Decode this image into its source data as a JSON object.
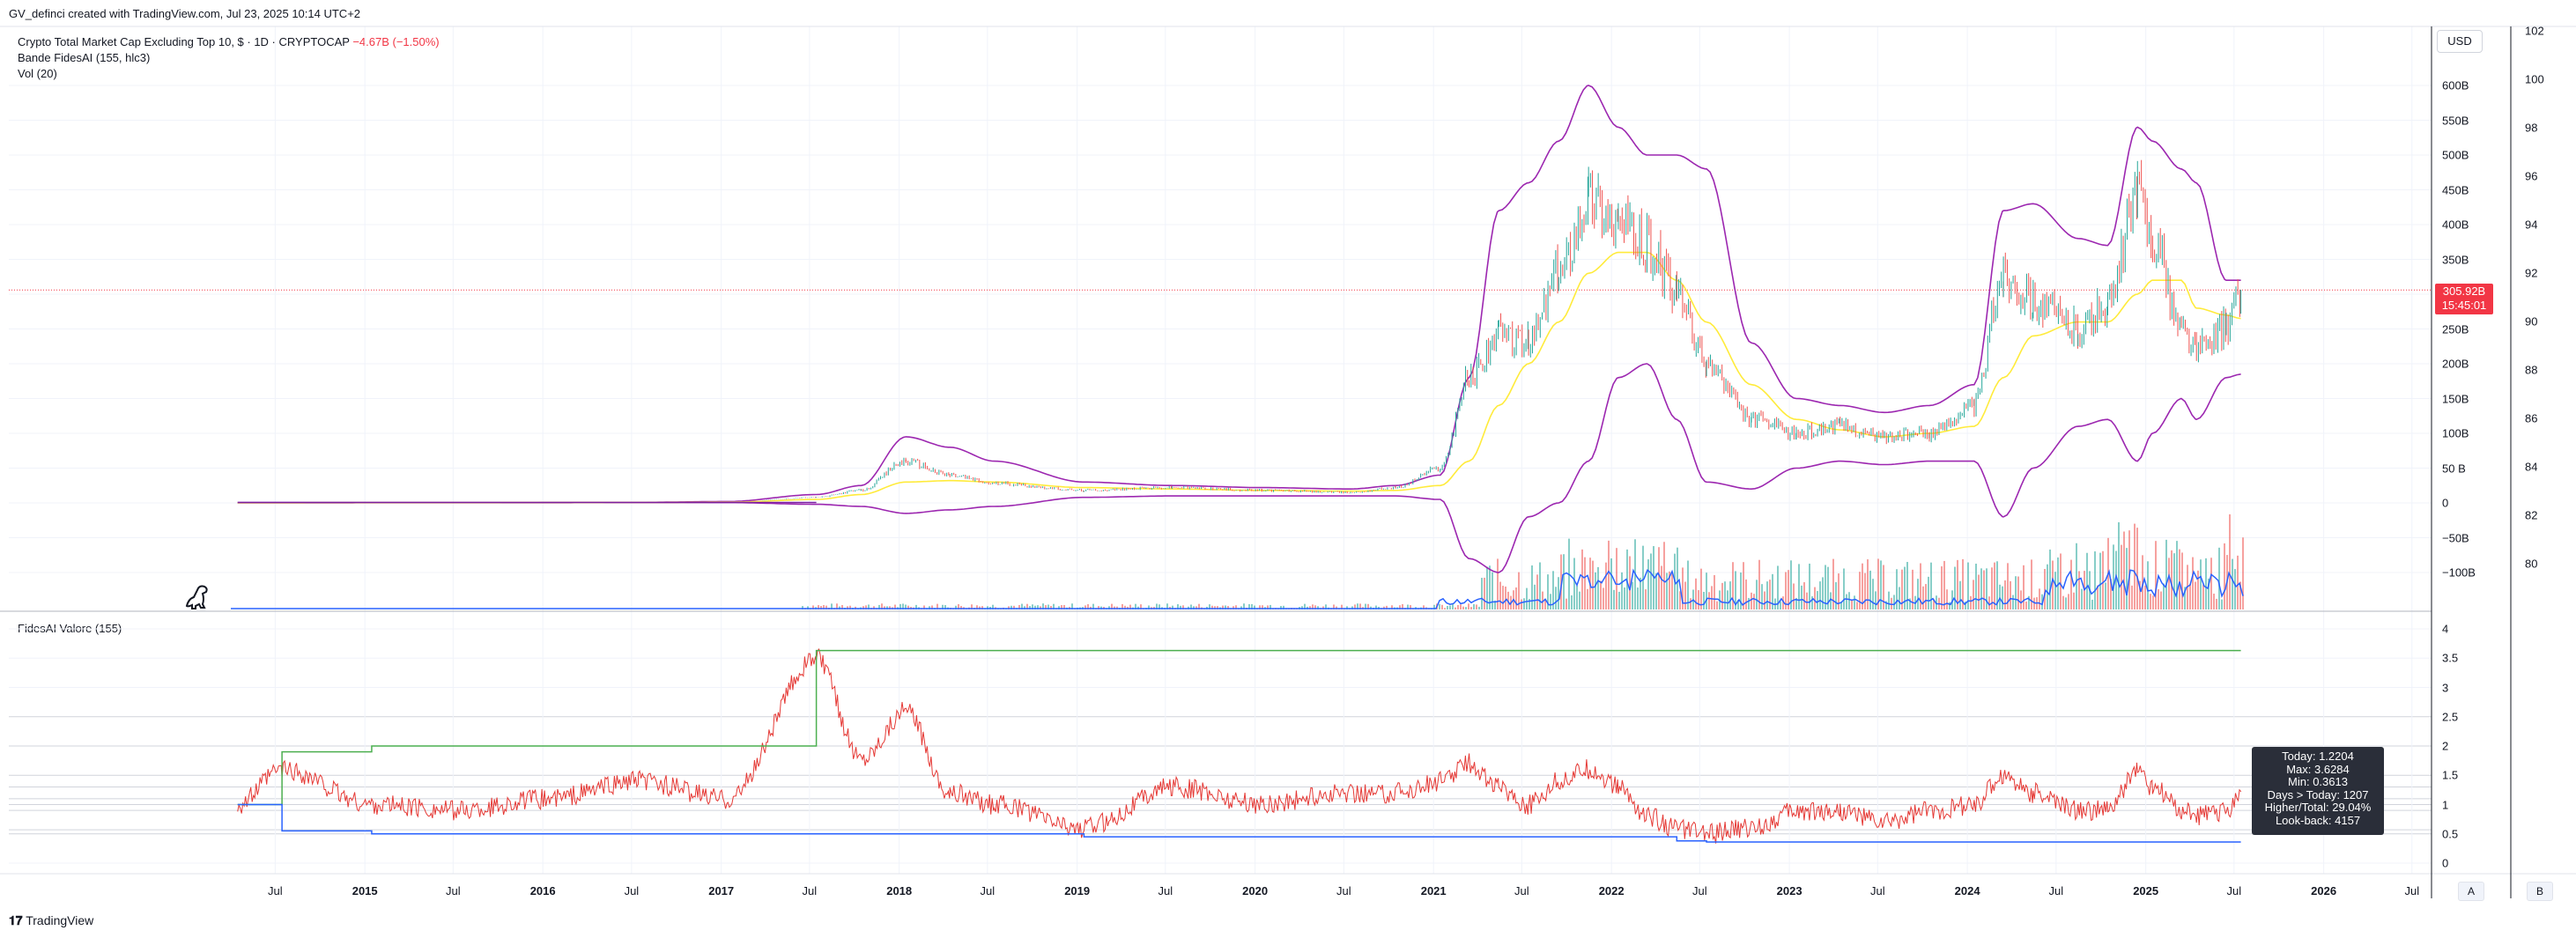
{
  "header": {
    "attribution": "GV_definci created with TradingView.com, Jul 23, 2025 10:14 UTC+2"
  },
  "legend": {
    "symbol_line": "Crypto Total Market Cap Excluding Top 10, $ · 1D · CRYPTOCAP",
    "change": "−4.67B (−1.50%)",
    "indicator1": "Bande FidesAI (155, hlc3)",
    "indicator2": "Vol (20)"
  },
  "lower_pane": {
    "title": "FidesAI Valore (155)"
  },
  "price_axis": {
    "currency_button": "USD",
    "left_labels": [
      "600B",
      "550B",
      "500B",
      "450B",
      "400B",
      "350B",
      "300B",
      "250B",
      "200B",
      "150B",
      "100B",
      "50 B",
      "0",
      "−50B",
      "−100B"
    ],
    "right_labels": [
      "102",
      "100",
      "98",
      "96",
      "94",
      "92",
      "90",
      "88",
      "86",
      "84",
      "82",
      "80"
    ],
    "current_price": "305.92B",
    "countdown": "15:45:01"
  },
  "lower_axis": {
    "labels": [
      "4",
      "3.5",
      "3",
      "2.5",
      "2",
      "1.5",
      "1",
      "0.5",
      "0"
    ]
  },
  "time_axis": {
    "labels": [
      {
        "text": "Jul",
        "year": false
      },
      {
        "text": "2015",
        "year": true
      },
      {
        "text": "Jul",
        "year": false
      },
      {
        "text": "2016",
        "year": true
      },
      {
        "text": "Jul",
        "year": false
      },
      {
        "text": "2017",
        "year": true
      },
      {
        "text": "Jul",
        "year": false
      },
      {
        "text": "2018",
        "year": true
      },
      {
        "text": "Jul",
        "year": false
      },
      {
        "text": "2019",
        "year": true
      },
      {
        "text": "Jul",
        "year": false
      },
      {
        "text": "2020",
        "year": true
      },
      {
        "text": "Jul",
        "year": false
      },
      {
        "text": "2021",
        "year": true
      },
      {
        "text": "Jul",
        "year": false
      },
      {
        "text": "2022",
        "year": true
      },
      {
        "text": "Jul",
        "year": false
      },
      {
        "text": "2023",
        "year": true
      },
      {
        "text": "Jul",
        "year": false
      },
      {
        "text": "2024",
        "year": true
      },
      {
        "text": "Jul",
        "year": false
      },
      {
        "text": "2025",
        "year": true
      },
      {
        "text": "Jul",
        "year": false
      },
      {
        "text": "2026",
        "year": true
      },
      {
        "text": "Jul",
        "year": false
      }
    ],
    "scale_buttons": [
      "A",
      "B"
    ]
  },
  "stats_box": {
    "today": "Today: 1.2204",
    "max": "Max: 3.6284",
    "min": "Min: 0.3613",
    "days": "Days > Today: 1207",
    "ratio": "Higher/Total: 29.04%",
    "lookback": "Look-back: 4157"
  },
  "footer": {
    "brand": "TradingView"
  },
  "colors": {
    "up": "#26a69a",
    "down": "#ef5350",
    "band": "#9c27b0",
    "basis": "#ffeb3b",
    "volume_ma": "#2962ff",
    "oscillator": "#e53935",
    "max_line": "#4caf50",
    "min_line": "#2962ff",
    "price_line": "#f23645"
  },
  "chart_data": [
    {
      "type": "line",
      "title": "Crypto Total Market Cap Excluding Top 10, $ · 1D · CRYPTOCAP",
      "x": [
        "2014-04",
        "2014-07",
        "2015-01",
        "2015-07",
        "2016-01",
        "2016-07",
        "2017-01",
        "2017-07",
        "2017-10",
        "2018-01",
        "2018-04",
        "2018-07",
        "2019-01",
        "2019-07",
        "2020-01",
        "2020-07",
        "2020-10",
        "2021-01",
        "2021-03",
        "2021-05",
        "2021-07",
        "2021-09",
        "2021-11",
        "2022-01",
        "2022-03",
        "2022-05",
        "2022-07",
        "2022-10",
        "2023-01",
        "2023-04",
        "2023-07",
        "2023-10",
        "2024-01",
        "2024-03",
        "2024-05",
        "2024-08",
        "2024-10",
        "2024-12",
        "2025-01",
        "2025-03",
        "2025-04",
        "2025-06",
        "2025-07"
      ],
      "series": [
        {
          "name": "Price",
          "values": [
            0.3,
            0.3,
            0.4,
            0.4,
            0.5,
            0.6,
            1,
            8,
            18,
            60,
            40,
            28,
            18,
            22,
            18,
            15,
            22,
            50,
            180,
            240,
            230,
            330,
            440,
            400,
            370,
            300,
            200,
            120,
            100,
            110,
            95,
            100,
            140,
            330,
            290,
            250,
            280,
            440,
            380,
            250,
            220,
            250,
            306
          ]
        },
        {
          "name": "Basis",
          "values": [
            0.3,
            0.3,
            0.4,
            0.4,
            0.5,
            0.6,
            1,
            5,
            12,
            30,
            32,
            30,
            22,
            20,
            18,
            17,
            18,
            25,
            60,
            140,
            200,
            260,
            330,
            360,
            360,
            320,
            260,
            170,
            120,
            105,
            95,
            100,
            110,
            180,
            240,
            260,
            260,
            300,
            320,
            320,
            280,
            270,
            265
          ]
        },
        {
          "name": "Upper",
          "values": [
            0.5,
            0.5,
            0.6,
            0.6,
            0.7,
            0.8,
            2,
            12,
            25,
            95,
            80,
            60,
            30,
            25,
            22,
            20,
            25,
            40,
            180,
            420,
            460,
            520,
            600,
            540,
            500,
            500,
            480,
            230,
            150,
            140,
            130,
            140,
            170,
            420,
            430,
            380,
            370,
            540,
            520,
            480,
            460,
            320,
            320
          ]
        },
        {
          "name": "Lower",
          "values": [
            0.1,
            0.1,
            0.2,
            0.2,
            0.3,
            0.4,
            0.5,
            -2,
            -5,
            -15,
            -10,
            -5,
            8,
            10,
            10,
            10,
            10,
            5,
            -80,
            -100,
            -20,
            0,
            60,
            180,
            200,
            120,
            30,
            20,
            50,
            60,
            55,
            60,
            60,
            -20,
            50,
            110,
            120,
            60,
            100,
            150,
            120,
            180,
            185
          ]
        }
      ],
      "ylim": [
        -120,
        640
      ],
      "right_axis_range": [
        79,
        102
      ]
    },
    {
      "type": "line",
      "title": "FidesAI Valore (155)",
      "x": [
        "2014-04",
        "2014-07",
        "2015-01",
        "2015-07",
        "2016-01",
        "2016-07",
        "2017-01",
        "2017-07",
        "2017-10",
        "2018-01",
        "2018-04",
        "2018-07",
        "2019-01",
        "2019-07",
        "2020-01",
        "2020-07",
        "2020-10",
        "2021-01",
        "2021-03",
        "2021-05",
        "2021-07",
        "2021-09",
        "2021-11",
        "2022-01",
        "2022-03",
        "2022-05",
        "2022-07",
        "2022-10",
        "2023-01",
        "2023-04",
        "2023-07",
        "2023-10",
        "2024-01",
        "2024-03",
        "2024-05",
        "2024-08",
        "2024-10",
        "2024-12",
        "2025-01",
        "2025-03",
        "2025-04",
        "2025-06",
        "2025-07"
      ],
      "series": [
        {
          "name": "Valore",
          "values": [
            1,
            1.6,
            1.0,
            0.9,
            1.1,
            1.4,
            1.1,
            3.5,
            1.8,
            2.6,
            1.2,
            1.0,
            0.6,
            1.3,
            1.0,
            1.2,
            1.2,
            1.4,
            1.7,
            1.3,
            1.0,
            1.4,
            1.6,
            1.3,
            0.8,
            0.6,
            0.5,
            0.6,
            0.9,
            0.9,
            0.7,
            0.9,
            1.0,
            1.5,
            1.2,
            0.9,
            0.9,
            1.6,
            1.3,
            0.9,
            0.8,
            0.9,
            1.22
          ]
        },
        {
          "name": "Max",
          "values": [
            1,
            1.9,
            2.0,
            2.0,
            2.0,
            2.0,
            2.0,
            3.63,
            3.63,
            3.63,
            3.63,
            3.63,
            3.63,
            3.63,
            3.63,
            3.63,
            3.63,
            3.63,
            3.63,
            3.63,
            3.63,
            3.63,
            3.63,
            3.63,
            3.63,
            3.63,
            3.63,
            3.63,
            3.63,
            3.63,
            3.63,
            3.63,
            3.63,
            3.63,
            3.63,
            3.63,
            3.63,
            3.63,
            3.63,
            3.63,
            3.63,
            3.63,
            3.63
          ]
        },
        {
          "name": "Min",
          "values": [
            1,
            0.55,
            0.5,
            0.5,
            0.5,
            0.5,
            0.5,
            0.5,
            0.5,
            0.5,
            0.5,
            0.5,
            0.45,
            0.45,
            0.45,
            0.45,
            0.45,
            0.45,
            0.45,
            0.45,
            0.45,
            0.45,
            0.45,
            0.45,
            0.45,
            0.38,
            0.36,
            0.36,
            0.36,
            0.36,
            0.36,
            0.36,
            0.36,
            0.36,
            0.36,
            0.36,
            0.36,
            0.36,
            0.36,
            0.36,
            0.36,
            0.36,
            0.36
          ]
        }
      ],
      "ylim": [
        -0.1,
        4.2
      ]
    }
  ]
}
